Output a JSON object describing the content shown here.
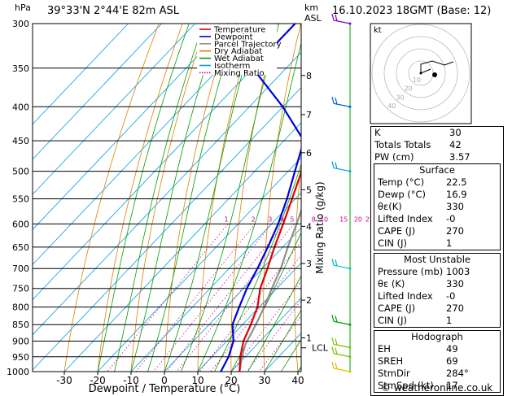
{
  "header": {
    "station": "39°33'N  2°44'E  82m  ASL",
    "datetime": "16.10.2023  18GMT  (Base: 12)",
    "hpa_label": "hPa",
    "km_label": "km",
    "asl_label": "ASL"
  },
  "legend": [
    {
      "label": "Temperature",
      "color": "#e00000"
    },
    {
      "label": "Dewpoint",
      "color": "#0000e0"
    },
    {
      "label": "Parcel Trajectory",
      "color": "#909090"
    },
    {
      "label": "Dry Adiabat",
      "color": "#e08000"
    },
    {
      "label": "Wet Adiabat",
      "color": "#00a000"
    },
    {
      "label": "Isotherm",
      "color": "#00a0e0"
    },
    {
      "label": "Mixing Ratio",
      "color": "#d000a0"
    }
  ],
  "chart_data": {
    "type": "skew-t",
    "xlabel": "Dewpoint / Temperature (°C)",
    "ylabel_right": "Mixing Ratio (g/kg)",
    "x_ticks": [
      -30,
      -20,
      -10,
      0,
      10,
      20,
      30,
      40
    ],
    "pressure_levels": [
      300,
      350,
      400,
      450,
      500,
      550,
      600,
      650,
      700,
      750,
      800,
      850,
      900,
      950,
      1000
    ],
    "km_ticks": [
      "8",
      "7",
      "6",
      "5",
      "4",
      "3",
      "2",
      "1"
    ],
    "lcl_label": "LCL",
    "mixing_ratio_labels": [
      "1",
      "2",
      "3",
      "4",
      "5",
      "8",
      "10",
      "15",
      "20",
      "25"
    ],
    "temperature": {
      "pressure": [
        1000,
        950,
        900,
        850,
        800,
        750,
        700,
        650,
        600,
        550,
        500,
        450,
        400,
        350,
        300
      ],
      "values": [
        22.5,
        18.5,
        15,
        12.5,
        9.5,
        5,
        1.5,
        -2.5,
        -6.5,
        -11,
        -16,
        -22,
        -29,
        -38,
        -47
      ]
    },
    "dewpoint": {
      "pressure": [
        1000,
        950,
        900,
        850,
        800,
        750,
        700,
        650,
        600,
        550,
        500,
        450,
        400,
        350,
        300
      ],
      "values": [
        16.9,
        15,
        12,
        7,
        4,
        1,
        -1.5,
        -4.5,
        -8,
        -12.5,
        -18,
        -24,
        -40,
        -60,
        -60
      ]
    },
    "parcel": {
      "pressure": [
        1000,
        950,
        910,
        850,
        800,
        750,
        700,
        650,
        600,
        550,
        500,
        450,
        400,
        350,
        300
      ],
      "values": [
        22.5,
        19,
        16.5,
        14,
        11.5,
        8.5,
        5.5,
        1.5,
        -2.5,
        -7,
        -12.5,
        -18.5,
        -26,
        -34.5,
        -44
      ]
    }
  },
  "hodograph": {
    "label": "kt",
    "ring_labels": [
      "10",
      "20",
      "30",
      "40"
    ]
  },
  "indices": [
    {
      "label": "K",
      "value": "30"
    },
    {
      "label": "Totals Totals",
      "value": "42"
    },
    {
      "label": "PW (cm)",
      "value": "3.57"
    }
  ],
  "surface": {
    "title": "Surface",
    "rows": [
      {
        "label": "Temp (°C)",
        "value": "22.5"
      },
      {
        "label": "Dewp (°C)",
        "value": "16.9"
      },
      {
        "label": "θε(K)",
        "value": "330"
      },
      {
        "label": "Lifted Index",
        "value": "-0"
      },
      {
        "label": "CAPE (J)",
        "value": "270"
      },
      {
        "label": "CIN (J)",
        "value": "1"
      }
    ]
  },
  "most_unstable": {
    "title": "Most Unstable",
    "rows": [
      {
        "label": "Pressure (mb)",
        "value": "1003"
      },
      {
        "label": "θε (K)",
        "value": "330"
      },
      {
        "label": "Lifted Index",
        "value": "-0"
      },
      {
        "label": "CAPE (J)",
        "value": "270"
      },
      {
        "label": "CIN (J)",
        "value": "1"
      }
    ]
  },
  "hodograph_table": {
    "title": "Hodograph",
    "rows": [
      {
        "label": "EH",
        "value": "49"
      },
      {
        "label": "SREH",
        "value": "69"
      },
      {
        "label": "StmDir",
        "value": "284°"
      },
      {
        "label": "StmSpd (kt)",
        "value": "17"
      }
    ]
  },
  "footer": "© weatheronline.co.uk"
}
